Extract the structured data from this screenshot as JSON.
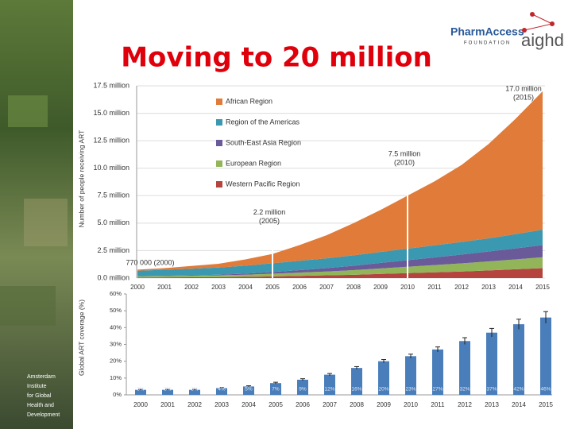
{
  "slide": {
    "title": "Moving to 20 million",
    "logo": {
      "name": "PharmAccess",
      "subtitle": "FOUNDATION",
      "partner": "aighd"
    },
    "sidebar_text": [
      "Amsterdam",
      "Institute",
      "for Global",
      "Health and",
      "Development"
    ]
  },
  "chart_data": [
    {
      "type": "stacked-area",
      "y_label": "Number of people receiving ART",
      "categories": [
        "2000",
        "2001",
        "2002",
        "2003",
        "2004",
        "2005",
        "2006",
        "2007",
        "2008",
        "2009",
        "2010",
        "2011",
        "2012",
        "2013",
        "2014",
        "2015"
      ],
      "series": [
        {
          "name": "African Region",
          "color": "#e07b39",
          "values": [
            0.1,
            0.14,
            0.25,
            0.34,
            0.57,
            0.85,
            1.43,
            2.1,
            2.93,
            3.82,
            4.82,
            5.82,
            7.01,
            8.58,
            10.5,
            12.6
          ]
        },
        {
          "name": "Region of the Americas",
          "color": "#3a98b0",
          "values": [
            0.5,
            0.55,
            0.6,
            0.65,
            0.72,
            0.8,
            0.85,
            0.9,
            0.95,
            1.0,
            1.05,
            1.1,
            1.15,
            1.2,
            1.3,
            1.4
          ]
        },
        {
          "name": "South-East Asia Region",
          "color": "#6a5a9a",
          "values": [
            0.02,
            0.03,
            0.04,
            0.06,
            0.1,
            0.15,
            0.22,
            0.3,
            0.4,
            0.5,
            0.6,
            0.7,
            0.8,
            0.9,
            1.0,
            1.1
          ]
        },
        {
          "name": "European Region",
          "color": "#93b55a",
          "values": [
            0.1,
            0.12,
            0.14,
            0.16,
            0.2,
            0.25,
            0.3,
            0.35,
            0.42,
            0.5,
            0.58,
            0.66,
            0.74,
            0.82,
            0.9,
            1.0
          ]
        },
        {
          "name": "Western Pacific Region",
          "color": "#b5443f",
          "values": [
            0.05,
            0.06,
            0.07,
            0.09,
            0.11,
            0.15,
            0.2,
            0.25,
            0.3,
            0.38,
            0.45,
            0.52,
            0.6,
            0.7,
            0.8,
            0.9
          ]
        }
      ],
      "ylim": [
        0,
        17.5
      ],
      "yticks": [
        {
          "value": 0,
          "label": "0.0 million"
        },
        {
          "value": 2.5,
          "label": "2.5 million"
        },
        {
          "value": 5,
          "label": "5.0 million"
        },
        {
          "value": 7.5,
          "label": "7.5 million"
        },
        {
          "value": 10,
          "label": "10.0 million"
        },
        {
          "value": 12.5,
          "label": "12.5 million"
        },
        {
          "value": 15,
          "label": "15.0 million"
        },
        {
          "value": 17.5,
          "label": "17.5 million"
        }
      ],
      "grid": true,
      "annotations": [
        {
          "category": "2000",
          "value": 0.77,
          "text": "770 000 (2000)"
        },
        {
          "category": "2005",
          "value": 2.2,
          "text": "2.2 million",
          "sub": "(2005)"
        },
        {
          "category": "2010",
          "value": 7.5,
          "text": "7.5 million",
          "sub": "(2010)"
        },
        {
          "category": "2015",
          "value": 17.0,
          "text": "17.0 million",
          "sub": "(2015)"
        }
      ]
    },
    {
      "type": "bar",
      "y_label": "Global ART coverage (%)",
      "categories": [
        "2000",
        "2001",
        "2002",
        "2003",
        "2004",
        "2005",
        "2006",
        "2007",
        "2008",
        "2009",
        "2010",
        "2011",
        "2012",
        "2013",
        "2014",
        "2015"
      ],
      "values": [
        3,
        3,
        3,
        4,
        5,
        7,
        9,
        12,
        16,
        20,
        23,
        27,
        32,
        37,
        42,
        46
      ],
      "value_labels": [
        "3%",
        "3%",
        "3%",
        "4%",
        "5%",
        "7%",
        "9%",
        "12%",
        "16%",
        "20%",
        "23%",
        "27%",
        "32%",
        "37%",
        "42%",
        "46%"
      ],
      "errors": [
        0.3,
        0.3,
        0.3,
        0.4,
        0.4,
        0.5,
        0.6,
        0.7,
        0.8,
        1,
        1.2,
        1.5,
        2,
        2.5,
        3,
        3.5
      ],
      "color": "#4a7ebb",
      "ylim": [
        0,
        60
      ],
      "yticks": [
        {
          "value": 0,
          "label": "0%"
        },
        {
          "value": 10,
          "label": "10%"
        },
        {
          "value": 20,
          "label": "20%"
        },
        {
          "value": 30,
          "label": "30%"
        },
        {
          "value": 40,
          "label": "40%"
        },
        {
          "value": 50,
          "label": "50%"
        },
        {
          "value": 60,
          "label": "60%"
        }
      ]
    }
  ]
}
